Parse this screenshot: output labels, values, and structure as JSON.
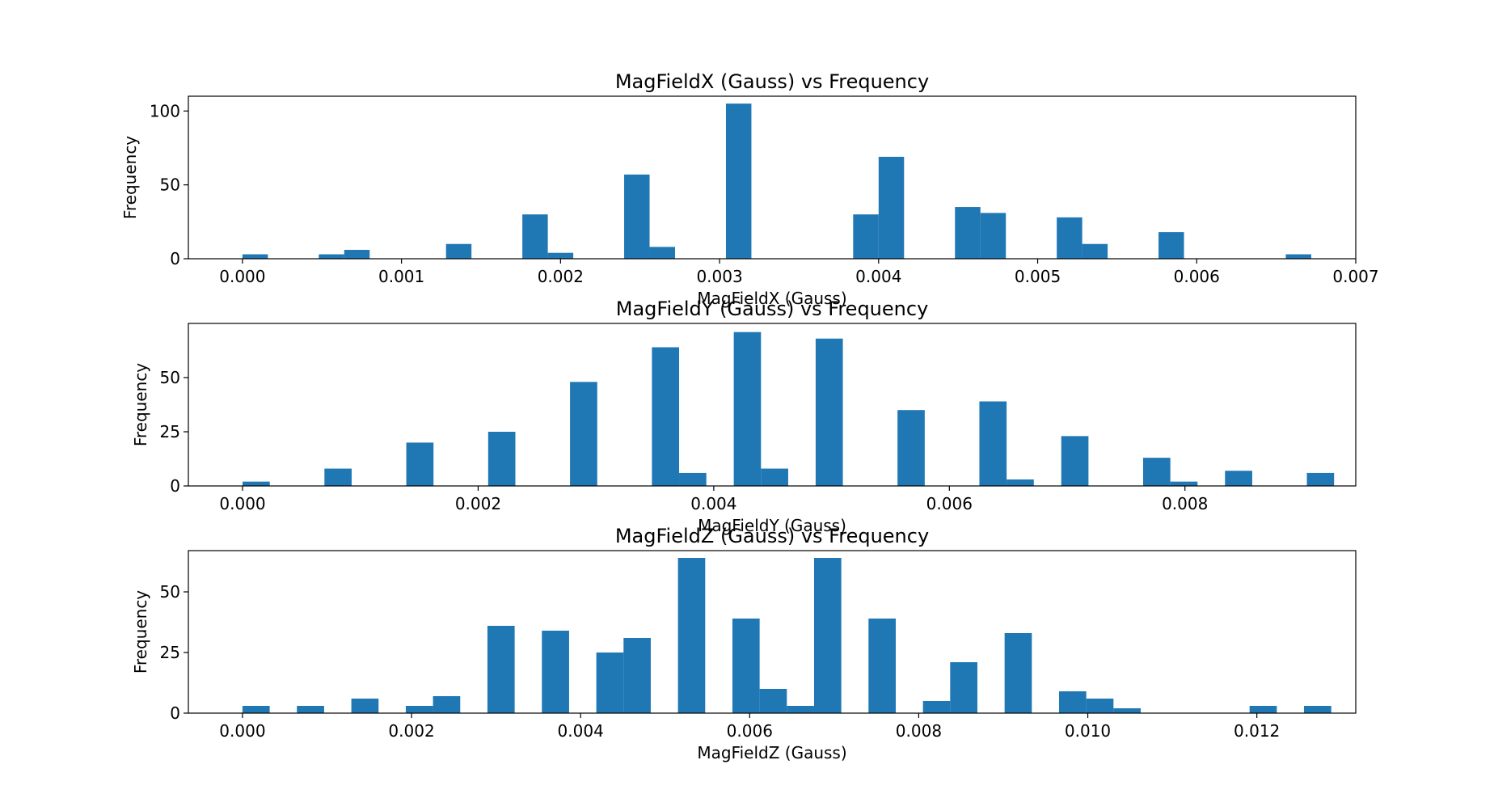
{
  "colors": {
    "bar": "#1f77b4",
    "axis": "#000000",
    "background": "#ffffff"
  },
  "chart_data": [
    {
      "type": "bar",
      "title": "MagFieldX (Gauss) vs Frequency",
      "xlabel": "MagFieldX (Gauss)",
      "ylabel": "Frequency",
      "xlim": [
        -0.00034,
        0.007
      ],
      "ylim": [
        0,
        110
      ],
      "xticks": [
        0.0,
        0.001,
        0.002,
        0.003,
        0.004,
        0.005,
        0.006,
        0.007
      ],
      "xtick_labels": [
        "0.000",
        "0.001",
        "0.002",
        "0.003",
        "0.004",
        "0.005",
        "0.006",
        "0.007"
      ],
      "yticks": [
        0,
        50,
        100
      ],
      "ytick_labels": [
        "0",
        "50",
        "100"
      ],
      "grid": false,
      "bin_width": 0.00016,
      "bins": [
        {
          "x": 0.0,
          "value": 3
        },
        {
          "x": 0.00048,
          "value": 3
        },
        {
          "x": 0.00064,
          "value": 6
        },
        {
          "x": 0.00128,
          "value": 10
        },
        {
          "x": 0.00176,
          "value": 30
        },
        {
          "x": 0.00192,
          "value": 4
        },
        {
          "x": 0.0024,
          "value": 57
        },
        {
          "x": 0.00256,
          "value": 8
        },
        {
          "x": 0.00304,
          "value": 105
        },
        {
          "x": 0.00384,
          "value": 30
        },
        {
          "x": 0.004,
          "value": 69
        },
        {
          "x": 0.00448,
          "value": 35
        },
        {
          "x": 0.00464,
          "value": 31
        },
        {
          "x": 0.00512,
          "value": 28
        },
        {
          "x": 0.00528,
          "value": 10
        },
        {
          "x": 0.00576,
          "value": 18
        },
        {
          "x": 0.00656,
          "value": 3
        }
      ]
    },
    {
      "type": "bar",
      "title": "MagFieldY (Gauss) vs Frequency",
      "xlabel": "MagFieldY (Gauss)",
      "ylabel": "Frequency",
      "xlim": [
        -0.00046,
        0.00945
      ],
      "ylim": [
        0,
        75
      ],
      "xticks": [
        0.0,
        0.002,
        0.004,
        0.006,
        0.008
      ],
      "xtick_labels": [
        "0.000",
        "0.002",
        "0.004",
        "0.006",
        "0.008"
      ],
      "yticks": [
        0,
        25,
        50
      ],
      "ytick_labels": [
        "0",
        "25",
        "50"
      ],
      "grid": false,
      "bin_width": 0.000231,
      "bins": [
        {
          "x": 0.0,
          "value": 2
        },
        {
          "x": 0.000695,
          "value": 8
        },
        {
          "x": 0.00139,
          "value": 20
        },
        {
          "x": 0.002085,
          "value": 25
        },
        {
          "x": 0.00278,
          "value": 48
        },
        {
          "x": 0.003475,
          "value": 64
        },
        {
          "x": 0.003706,
          "value": 6
        },
        {
          "x": 0.00417,
          "value": 71
        },
        {
          "x": 0.004401,
          "value": 8
        },
        {
          "x": 0.004865,
          "value": 68
        },
        {
          "x": 0.00556,
          "value": 35
        },
        {
          "x": 0.006255,
          "value": 39
        },
        {
          "x": 0.006486,
          "value": 3
        },
        {
          "x": 0.00695,
          "value": 23
        },
        {
          "x": 0.007645,
          "value": 13
        },
        {
          "x": 0.007876,
          "value": 2
        },
        {
          "x": 0.00834,
          "value": 7
        },
        {
          "x": 0.009035,
          "value": 6
        }
      ]
    },
    {
      "type": "bar",
      "title": "MagFieldZ (Gauss) vs Frequency",
      "xlabel": "MagFieldZ (Gauss)",
      "ylabel": "Frequency",
      "xlim": [
        -0.00064,
        0.01317
      ],
      "ylim": [
        0,
        67
      ],
      "xticks": [
        0.0,
        0.002,
        0.004,
        0.006,
        0.008,
        0.01,
        0.012
      ],
      "xtick_labels": [
        "0.000",
        "0.002",
        "0.004",
        "0.006",
        "0.008",
        "0.010",
        "0.012"
      ],
      "yticks": [
        0,
        25,
        50
      ],
      "ytick_labels": [
        "0",
        "25",
        "50"
      ],
      "grid": false,
      "bin_width": 0.000322,
      "bins": [
        {
          "x": 0.0,
          "value": 3
        },
        {
          "x": 0.000644,
          "value": 3
        },
        {
          "x": 0.001288,
          "value": 6
        },
        {
          "x": 0.001932,
          "value": 3
        },
        {
          "x": 0.002254,
          "value": 7
        },
        {
          "x": 0.002898,
          "value": 36
        },
        {
          "x": 0.003542,
          "value": 34
        },
        {
          "x": 0.004186,
          "value": 25
        },
        {
          "x": 0.004508,
          "value": 31
        },
        {
          "x": 0.005152,
          "value": 64
        },
        {
          "x": 0.005796,
          "value": 39
        },
        {
          "x": 0.006118,
          "value": 10
        },
        {
          "x": 0.00644,
          "value": 3
        },
        {
          "x": 0.006762,
          "value": 64
        },
        {
          "x": 0.007406,
          "value": 39
        },
        {
          "x": 0.00805,
          "value": 5
        },
        {
          "x": 0.008372,
          "value": 21
        },
        {
          "x": 0.009016,
          "value": 33
        },
        {
          "x": 0.00966,
          "value": 9
        },
        {
          "x": 0.009982,
          "value": 6
        },
        {
          "x": 0.010304,
          "value": 2
        },
        {
          "x": 0.011914,
          "value": 3
        },
        {
          "x": 0.012558,
          "value": 3
        }
      ]
    }
  ]
}
